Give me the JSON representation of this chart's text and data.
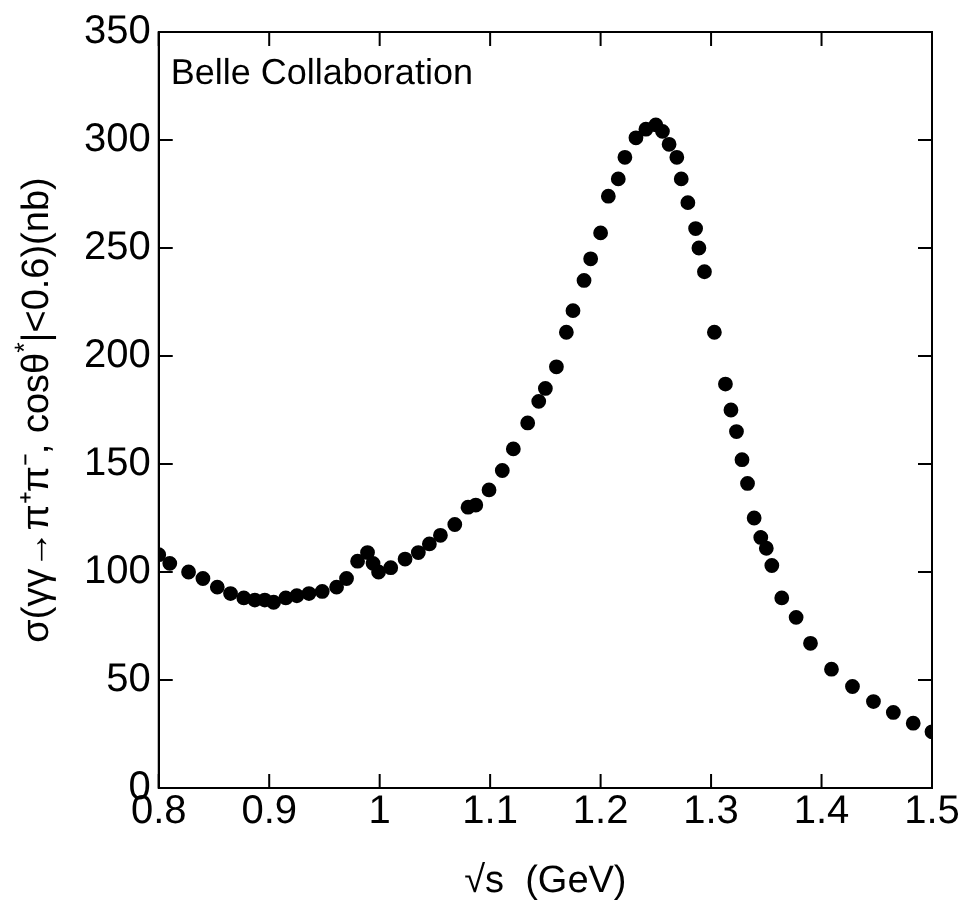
{
  "chart_data": {
    "type": "scatter",
    "xlabel": "√s  (GeV)",
    "ylabel": "σ(γγ→π⁺π⁻, cosθ$^{*}$|<0.6)(nb)",
    "annotations": [
      "Belle Collaboration"
    ],
    "marker": "circle",
    "grid": false,
    "legend": false,
    "xlim": [
      0.8,
      1.5
    ],
    "xticks": [
      {
        "value": 0.8,
        "label": "0.8"
      },
      {
        "value": 0.9,
        "label": "0.9"
      },
      {
        "value": 1,
        "label": "1"
      },
      {
        "value": 1.1,
        "label": "1.1"
      },
      {
        "value": 1.2,
        "label": "1.2"
      },
      {
        "value": 1.3,
        "label": "1.3"
      },
      {
        "value": 1.4,
        "label": "1.4"
      },
      {
        "value": 1.5,
        "label": "1.5"
      }
    ],
    "ylim": [
      0,
      350
    ],
    "yticks": [
      0,
      50,
      100,
      150,
      200,
      250,
      300,
      350
    ],
    "series": [
      {
        "color": "#000000",
        "x": [
          0.8,
          0.81,
          0.827,
          0.84,
          0.853,
          0.865,
          0.877,
          0.887,
          0.896,
          0.904,
          0.915,
          0.925,
          0.936,
          0.948,
          0.961,
          0.97,
          0.98,
          0.989,
          0.994,
          0.999,
          1.01,
          1.023,
          1.035,
          1.045,
          1.055,
          1.068,
          1.08,
          1.087,
          1.099,
          1.111,
          1.121,
          1.134,
          1.144,
          1.15,
          1.16,
          1.169,
          1.175,
          1.185,
          1.191,
          1.2,
          1.207,
          1.216,
          1.222,
          1.232,
          1.241,
          1.25,
          1.256,
          1.262,
          1.269,
          1.273,
          1.279,
          1.286,
          1.289,
          1.294,
          1.303,
          1.313,
          1.318,
          1.323,
          1.328,
          1.333,
          1.339,
          1.345,
          1.35,
          1.355,
          1.364,
          1.377,
          1.39,
          1.409,
          1.428,
          1.447,
          1.465,
          1.483,
          1.5
        ],
        "values": [
          108,
          104,
          100,
          97,
          93,
          90,
          88,
          87,
          87,
          86,
          88,
          89,
          90,
          91,
          93,
          97,
          105,
          109,
          104,
          100,
          102,
          106,
          109,
          113,
          117,
          122,
          130,
          131,
          138,
          147,
          157,
          169,
          179,
          185,
          195,
          211,
          221,
          235,
          245,
          257,
          274,
          282,
          292,
          301,
          305,
          307,
          304,
          298,
          292,
          282,
          271,
          259,
          250,
          239,
          211,
          187,
          175,
          165,
          152,
          141,
          125,
          116,
          111,
          103,
          88,
          79,
          67,
          55,
          47,
          40,
          35,
          30,
          26
        ]
      }
    ]
  }
}
